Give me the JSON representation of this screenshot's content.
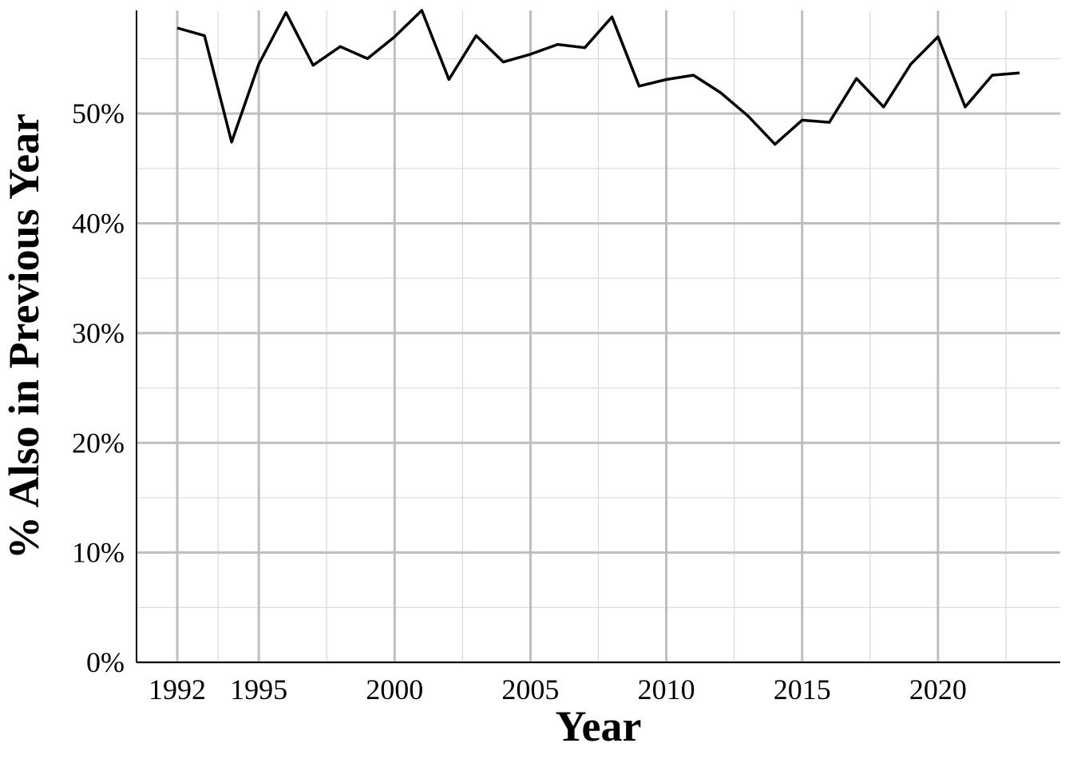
{
  "chart_data": {
    "type": "line",
    "title": "",
    "xlabel": "Year",
    "ylabel": "% Also in Previous Year",
    "x": [
      1992,
      1993,
      1994,
      1995,
      1996,
      1997,
      1998,
      1999,
      2000,
      2001,
      2002,
      2003,
      2004,
      2005,
      2006,
      2007,
      2008,
      2009,
      2010,
      2011,
      2012,
      2013,
      2014,
      2015,
      2016,
      2017,
      2018,
      2019,
      2020,
      2021,
      2022,
      2023
    ],
    "series": [
      {
        "values": [
          57.8,
          57.1,
          47.4,
          54.5,
          59.2,
          54.4,
          56.1,
          55.0,
          57.0,
          59.4,
          53.1,
          57.1,
          54.7,
          55.4,
          56.3,
          56.0,
          58.8,
          52.5,
          53.1,
          53.5,
          51.9,
          49.8,
          47.2,
          49.4,
          49.2,
          53.2,
          50.6,
          54.5,
          57.0,
          50.6,
          53.5,
          53.7
        ]
      }
    ],
    "xticks": [
      1992,
      1995,
      2000,
      2005,
      2010,
      2015,
      2020
    ],
    "xtick_labels": [
      "1992",
      "1995",
      "2000",
      "2005",
      "2010",
      "2015",
      "2020"
    ],
    "yticks": [
      0,
      10,
      20,
      30,
      40,
      50
    ],
    "ytick_labels": [
      "0%",
      "10%",
      "20%",
      "30%",
      "40%",
      "50%"
    ],
    "xlim": [
      1990.5,
      2024.5
    ],
    "ylim": [
      0,
      59.4
    ],
    "grid": true,
    "colors": {
      "line": "#000000",
      "grid_major": "#bebebe",
      "grid_minor": "#d9d9d9",
      "axis": "#000000"
    }
  }
}
